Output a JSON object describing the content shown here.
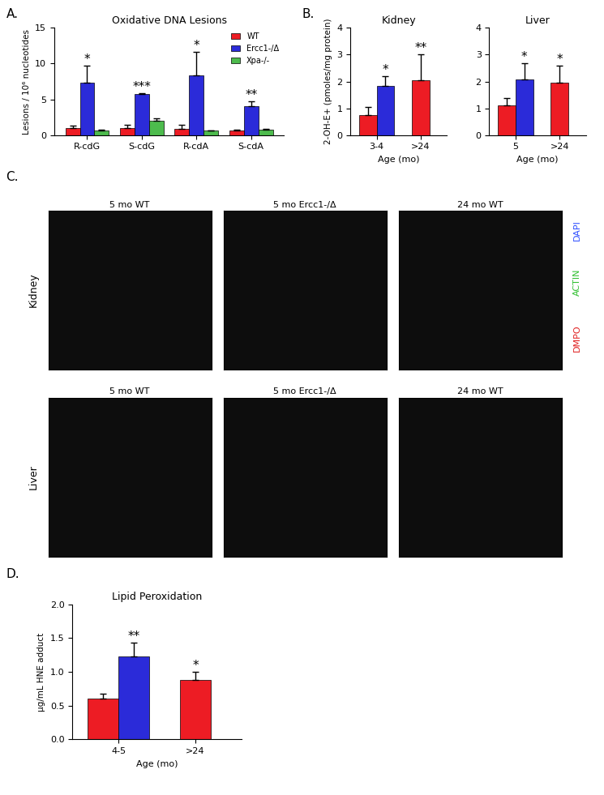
{
  "chart_data": [
    {
      "panel": "A.",
      "type": "bar",
      "title": "Oxidative DNA Lesions",
      "y_label": "Lesions / 10⁶ nucleotides",
      "categories": [
        "R-cdG",
        "S-cdG",
        "R-cdA",
        "S-cdA"
      ],
      "series": [
        {
          "name": "WT",
          "color": "#ed1c24",
          "values": [
            1.0,
            1.0,
            0.9,
            0.6
          ],
          "errors": [
            0.3,
            0.4,
            0.5,
            0.2
          ],
          "significance": [
            null,
            null,
            null,
            null
          ]
        },
        {
          "name": "Ercc1-/Δ",
          "color": "#2b2bd9",
          "values": [
            7.3,
            5.7,
            8.3,
            4.1
          ],
          "errors": [
            2.4,
            0.2,
            3.3,
            0.6
          ],
          "significance": [
            "*",
            "***",
            "*",
            "**"
          ]
        },
        {
          "name": "Xpa-/-",
          "color": "#4dbb4d",
          "values": [
            0.7,
            2.0,
            0.6,
            0.8
          ],
          "errors": [
            0.05,
            0.3,
            0.1,
            0.1
          ],
          "significance": [
            null,
            null,
            null,
            null
          ]
        }
      ],
      "ylim": [
        0,
        15
      ],
      "yticks": [
        0,
        5,
        10,
        15
      ],
      "legend": "upper right"
    },
    {
      "panel": "B.",
      "type": "bar",
      "title": "Kidney",
      "y_label": "2-OH-E+ (pmoles/mg protein)",
      "x_label": "Age (mo)",
      "categories": [
        "3-4",
        ">24"
      ],
      "series": [
        {
          "color": "#ed1c24",
          "values": [
            0.75,
            2.05
          ],
          "errors": [
            0.3,
            0.95
          ],
          "significance": [
            null,
            "**"
          ]
        },
        {
          "color": "#2b2bd9",
          "values": [
            1.85,
            null
          ],
          "errors": [
            0.35,
            null
          ],
          "significance": [
            "*",
            null
          ]
        }
      ],
      "ylim": [
        0,
        4
      ],
      "yticks": [
        0,
        1,
        2,
        3,
        4
      ]
    },
    {
      "type": "bar",
      "title": "Liver",
      "x_label": "Age (mo)",
      "categories": [
        "5",
        ">24"
      ],
      "series": [
        {
          "color": "#ed1c24",
          "values": [
            1.1,
            1.95
          ],
          "errors": [
            0.28,
            0.65
          ],
          "significance": [
            null,
            "*"
          ]
        },
        {
          "color": "#2b2bd9",
          "values": [
            2.08,
            null
          ],
          "errors": [
            0.6,
            null
          ],
          "significance": [
            "*",
            null
          ]
        }
      ],
      "ylim": [
        0,
        4
      ],
      "yticks": [
        0,
        1,
        2,
        3,
        4
      ]
    },
    {
      "panel": "D.",
      "type": "bar",
      "title": "Lipid Peroxidation",
      "y_label": "µg/mL HNE adduct",
      "x_label": "Age (mo)",
      "categories": [
        "4-5",
        ">24"
      ],
      "series": [
        {
          "color": "#ed1c24",
          "values": [
            0.6,
            0.88
          ],
          "errors": [
            0.08,
            0.12
          ],
          "significance": [
            null,
            "*"
          ]
        },
        {
          "color": "#2b2bd9",
          "values": [
            1.23,
            null
          ],
          "errors": [
            0.2,
            null
          ],
          "significance": [
            "**",
            null
          ]
        }
      ],
      "ylim": [
        0,
        2.0
      ],
      "yticks": [
        {
          "value": 0,
          "label": "0.0"
        },
        {
          "value": 0.5,
          "label": "0.5"
        },
        {
          "value": 1.0,
          "label": "1.0"
        },
        {
          "value": 1.5,
          "label": "1.5"
        },
        {
          "value": 2.0,
          "label": "2.0"
        }
      ]
    }
  ],
  "image_panel": {
    "panel": "C.",
    "columns": [
      "5 mo WT",
      "5 mo Ercc1-/Δ",
      "24 mo WT"
    ],
    "rows": [
      "Kidney",
      "Liver"
    ],
    "stains": [
      {
        "label": "DAPI",
        "color": "#3050ff"
      },
      {
        "label": "ACTIN",
        "color": "#30c030"
      },
      {
        "label": "DMPO",
        "color": "#e02020"
      }
    ]
  }
}
